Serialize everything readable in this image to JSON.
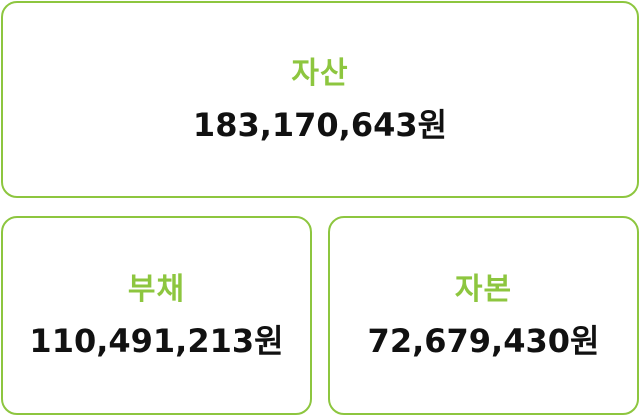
{
  "colors": {
    "accent": "#8dc63f",
    "text": "#111111",
    "background": "#ffffff"
  },
  "assets": {
    "label": "자산",
    "amount": "183,170,643원"
  },
  "liabilities": {
    "label": "부채",
    "amount": "110,491,213원"
  },
  "equity": {
    "label": "자본",
    "amount": "72,679,430원"
  }
}
